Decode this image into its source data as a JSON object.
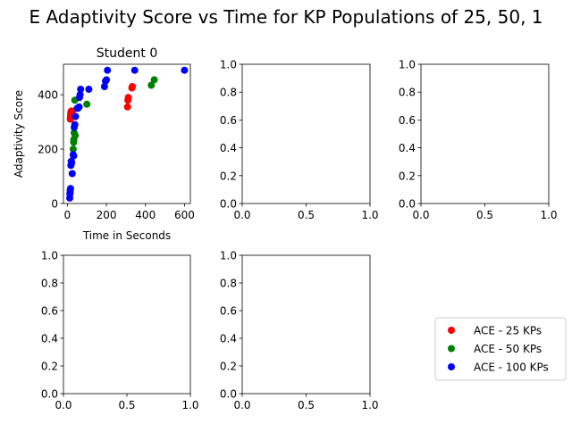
{
  "suptitle": "E Adaptivity Score vs Time for KP Populations of 25, 50, 1",
  "legend": {
    "placement": "lower-right",
    "entries": [
      {
        "label": "ACE - 25 KPs",
        "color": "#ff0000"
      },
      {
        "label": "ACE - 50 KPs",
        "color": "#008000"
      },
      {
        "label": "ACE - 100 KPs",
        "color": "#0000ff"
      }
    ]
  },
  "chart_data": [
    {
      "type": "scatter",
      "title": "Student 0",
      "xlabel": "Time in Seconds",
      "ylabel": "Adaptivity Score",
      "xlim": [
        -20,
        630
      ],
      "ylim": [
        0,
        512
      ],
      "xticks": [
        {
          "v": 0,
          "label": "0"
        },
        {
          "v": 200,
          "label": "200"
        },
        {
          "v": 400,
          "label": "400"
        },
        {
          "v": 600,
          "label": "600"
        }
      ],
      "yticks": [
        {
          "v": 0,
          "label": "0"
        },
        {
          "v": 200,
          "label": "200"
        },
        {
          "v": 400,
          "label": "400"
        }
      ],
      "series": [
        {
          "name": "ACE - 25 KPs",
          "color": "#ff0000",
          "points": [
            [
              15,
              310
            ],
            [
              16,
              320
            ],
            [
              17,
              330
            ],
            [
              18,
              335
            ],
            [
              20,
              340
            ],
            [
              22,
              325
            ],
            [
              25,
              338
            ],
            [
              308,
              355
            ],
            [
              310,
              380
            ],
            [
              312,
              390
            ],
            [
              330,
              425
            ],
            [
              333,
              430
            ]
          ]
        },
        {
          "name": "ACE - 50 KPs",
          "color": "#008000",
          "points": [
            [
              30,
              200
            ],
            [
              32,
              225
            ],
            [
              33,
              235
            ],
            [
              35,
              260
            ],
            [
              38,
              380
            ],
            [
              40,
              250
            ],
            [
              55,
              350
            ],
            [
              100,
              365
            ],
            [
              430,
              435
            ],
            [
              445,
              455
            ]
          ]
        },
        {
          "name": "ACE - 100 KPs",
          "color": "#0000ff",
          "points": [
            [
              12,
              20
            ],
            [
              13,
              35
            ],
            [
              14,
              40
            ],
            [
              15,
              50
            ],
            [
              16,
              55
            ],
            [
              18,
              140
            ],
            [
              20,
              155
            ],
            [
              22,
              150
            ],
            [
              25,
              110
            ],
            [
              30,
              180
            ],
            [
              32,
              175
            ],
            [
              35,
              280
            ],
            [
              38,
              290
            ],
            [
              42,
              320
            ],
            [
              50,
              350
            ],
            [
              60,
              355
            ],
            [
              62,
              390
            ],
            [
              65,
              400
            ],
            [
              68,
              420
            ],
            [
              110,
              420
            ],
            [
              190,
              430
            ],
            [
              195,
              450
            ],
            [
              200,
              455
            ],
            [
              205,
              490
            ],
            [
              345,
              490
            ],
            [
              600,
              490
            ]
          ]
        }
      ]
    },
    {
      "type": "scatter",
      "xlim": [
        0,
        1
      ],
      "ylim": [
        0,
        1
      ],
      "xticks": [
        {
          "v": 0,
          "label": "0.0"
        },
        {
          "v": 0.5,
          "label": "0.5"
        },
        {
          "v": 1,
          "label": "1.0"
        }
      ],
      "yticks": [
        {
          "v": 0,
          "label": "0.0"
        },
        {
          "v": 0.2,
          "label": "0.2"
        },
        {
          "v": 0.4,
          "label": "0.4"
        },
        {
          "v": 0.6,
          "label": "0.6"
        },
        {
          "v": 0.8,
          "label": "0.8"
        },
        {
          "v": 1,
          "label": "1.0"
        }
      ],
      "series": []
    },
    {
      "type": "scatter",
      "xlim": [
        0,
        1
      ],
      "ylim": [
        0,
        1
      ],
      "xticks": [
        {
          "v": 0,
          "label": "0.0"
        },
        {
          "v": 0.5,
          "label": "0.5"
        },
        {
          "v": 1,
          "label": "1.0"
        }
      ],
      "yticks": [
        {
          "v": 0,
          "label": "0.0"
        },
        {
          "v": 0.2,
          "label": "0.2"
        },
        {
          "v": 0.4,
          "label": "0.4"
        },
        {
          "v": 0.6,
          "label": "0.6"
        },
        {
          "v": 0.8,
          "label": "0.8"
        },
        {
          "v": 1,
          "label": "1.0"
        }
      ],
      "series": []
    },
    {
      "type": "scatter",
      "xlim": [
        0,
        1
      ],
      "ylim": [
        0,
        1
      ],
      "xticks": [
        {
          "v": 0,
          "label": "0.0"
        },
        {
          "v": 0.5,
          "label": "0.5"
        },
        {
          "v": 1,
          "label": "1.0"
        }
      ],
      "yticks": [
        {
          "v": 0,
          "label": "0.0"
        },
        {
          "v": 0.2,
          "label": "0.2"
        },
        {
          "v": 0.4,
          "label": "0.4"
        },
        {
          "v": 0.6,
          "label": "0.6"
        },
        {
          "v": 0.8,
          "label": "0.8"
        },
        {
          "v": 1,
          "label": "1.0"
        }
      ],
      "series": []
    },
    {
      "type": "scatter",
      "xlim": [
        0,
        1
      ],
      "ylim": [
        0,
        1
      ],
      "xticks": [
        {
          "v": 0,
          "label": "0.0"
        },
        {
          "v": 0.5,
          "label": "0.5"
        },
        {
          "v": 1,
          "label": "1.0"
        }
      ],
      "yticks": [
        {
          "v": 0,
          "label": "0.0"
        },
        {
          "v": 0.2,
          "label": "0.2"
        },
        {
          "v": 0.4,
          "label": "0.4"
        },
        {
          "v": 0.6,
          "label": "0.6"
        },
        {
          "v": 0.8,
          "label": "0.8"
        },
        {
          "v": 1,
          "label": "1.0"
        }
      ],
      "series": []
    }
  ]
}
